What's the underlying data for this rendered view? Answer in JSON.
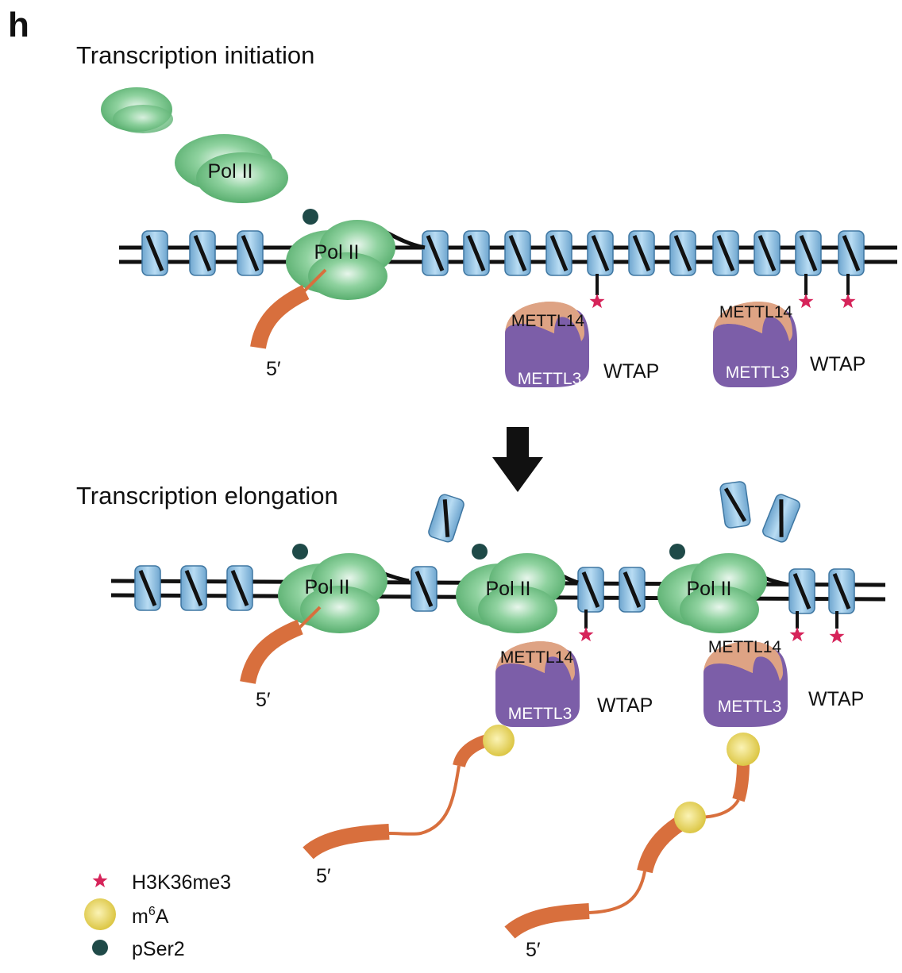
{
  "panel_label": "h",
  "stages": {
    "initiation": "Transcription initiation",
    "elongation": "Transcription elongation"
  },
  "labels": {
    "pol": "Pol II",
    "mettl14": "METTL14",
    "mettl3": "METTL3",
    "wtap": "WTAP",
    "five_prime": "5′"
  },
  "legend": {
    "h3k36me3": "H3K36me3",
    "m6a_base": "m",
    "m6a_sup": "6",
    "m6a_end": "A",
    "pser2": "pSer2"
  },
  "colors": {
    "pol": "#5fb873",
    "nucleosome": "#8fbfe0",
    "mettl14": "#dea384",
    "mettl3": "#7c5ea8",
    "wtap": "#9aa5b3",
    "rna": "#d86f3d",
    "h3k36me3": "#d6245a",
    "m6a": "#e8d34a",
    "pser2": "#1f4a48"
  }
}
